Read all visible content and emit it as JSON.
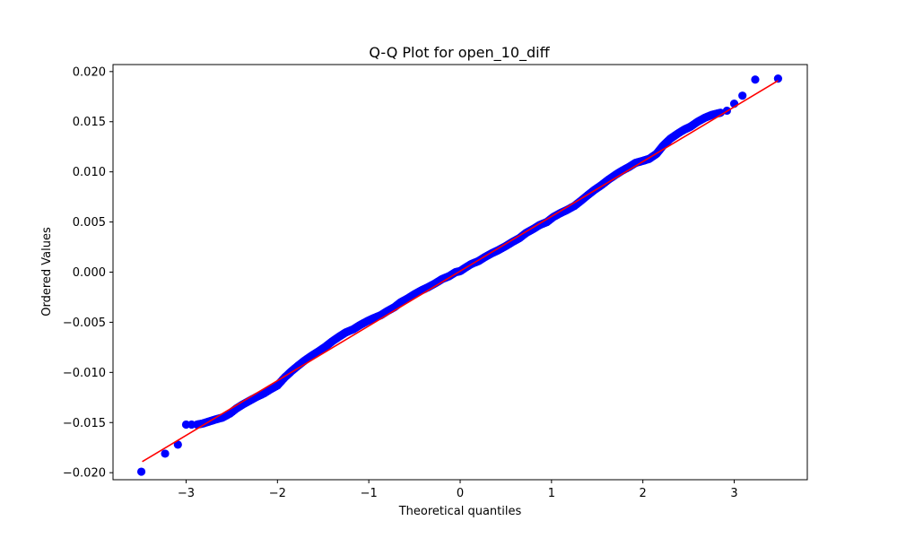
{
  "chart_data": {
    "type": "scatter",
    "title": "Q-Q Plot for open_10_diff",
    "xlabel": "Theoretical quantiles",
    "ylabel": "Ordered Values",
    "xlim": [
      -3.8,
      3.8
    ],
    "ylim": [
      -0.0207,
      0.0207
    ],
    "x_ticks": [
      -3,
      -2,
      -1,
      0,
      1,
      2,
      3
    ],
    "x_tick_labels": [
      "−3",
      "−2",
      "−1",
      "0",
      "1",
      "2",
      "3"
    ],
    "y_ticks": [
      -0.02,
      -0.015,
      -0.01,
      -0.005,
      0.0,
      0.005,
      0.01,
      0.015,
      0.02
    ],
    "y_tick_labels": [
      "−0.020",
      "−0.015",
      "−0.010",
      "−0.005",
      "0.000",
      "0.005",
      "0.010",
      "0.015",
      "0.020"
    ],
    "grid": false,
    "legend": "none",
    "series": [
      {
        "kind": "sample",
        "color": "#0000ff",
        "points": [
          [
            -3.49,
            -0.0199
          ],
          [
            -3.23,
            -0.0181
          ],
          [
            -3.09,
            -0.0172
          ],
          [
            -3.0,
            -0.0152
          ],
          [
            -2.94,
            -0.0152
          ],
          [
            -2.88,
            -0.0152
          ],
          [
            -2.82,
            -0.0151
          ],
          [
            -2.75,
            -0.0149
          ],
          [
            -2.68,
            -0.0147
          ],
          [
            -2.6,
            -0.0145
          ],
          [
            -2.52,
            -0.0141
          ],
          [
            -2.45,
            -0.0136
          ],
          [
            -2.38,
            -0.0132
          ],
          [
            -2.3,
            -0.0128
          ],
          [
            -2.22,
            -0.0124
          ],
          [
            -2.15,
            -0.0121
          ],
          [
            -2.08,
            -0.0117
          ],
          [
            -2.0,
            -0.0113
          ],
          [
            -1.92,
            -0.0105
          ],
          [
            -1.85,
            -0.0099
          ],
          [
            -1.77,
            -0.0093
          ],
          [
            -1.7,
            -0.0088
          ],
          [
            -1.62,
            -0.0083
          ],
          [
            -1.55,
            -0.0079
          ],
          [
            -1.47,
            -0.0074
          ],
          [
            -1.4,
            -0.0069
          ],
          [
            -1.32,
            -0.0064
          ],
          [
            -1.25,
            -0.006
          ],
          [
            -1.17,
            -0.0057
          ],
          [
            -1.1,
            -0.0053
          ],
          [
            -1.02,
            -0.0049
          ],
          [
            -0.95,
            -0.0046
          ],
          [
            -0.87,
            -0.0043
          ],
          [
            -0.8,
            -0.0039
          ],
          [
            -0.72,
            -0.0035
          ],
          [
            -0.65,
            -0.003
          ],
          [
            -0.57,
            -0.0026
          ],
          [
            -0.5,
            -0.0022
          ],
          [
            -0.42,
            -0.0018
          ],
          [
            -0.35,
            -0.0015
          ],
          [
            -0.27,
            -0.0011
          ],
          [
            -0.2,
            -0.0007
          ],
          [
            -0.12,
            -0.0004
          ],
          [
            -0.05,
            0.0
          ],
          [
            0.0,
            0.0001
          ],
          [
            0.05,
            0.0004
          ],
          [
            0.12,
            0.0008
          ],
          [
            0.2,
            0.0011
          ],
          [
            0.27,
            0.0015
          ],
          [
            0.35,
            0.0019
          ],
          [
            0.42,
            0.0022
          ],
          [
            0.5,
            0.0026
          ],
          [
            0.57,
            0.003
          ],
          [
            0.65,
            0.0034
          ],
          [
            0.72,
            0.0039
          ],
          [
            0.8,
            0.0043
          ],
          [
            0.87,
            0.0047
          ],
          [
            0.95,
            0.005
          ],
          [
            1.02,
            0.0055
          ],
          [
            1.1,
            0.0059
          ],
          [
            1.17,
            0.0062
          ],
          [
            1.25,
            0.0066
          ],
          [
            1.32,
            0.0071
          ],
          [
            1.4,
            0.0077
          ],
          [
            1.47,
            0.0082
          ],
          [
            1.55,
            0.0087
          ],
          [
            1.62,
            0.0092
          ],
          [
            1.7,
            0.0097
          ],
          [
            1.77,
            0.0101
          ],
          [
            1.85,
            0.0105
          ],
          [
            1.92,
            0.0109
          ],
          [
            2.0,
            0.0111
          ],
          [
            2.07,
            0.0113
          ],
          [
            2.15,
            0.0118
          ],
          [
            2.22,
            0.0126
          ],
          [
            2.3,
            0.0133
          ],
          [
            2.38,
            0.0138
          ],
          [
            2.45,
            0.0142
          ],
          [
            2.52,
            0.0145
          ],
          [
            2.6,
            0.015
          ],
          [
            2.68,
            0.0154
          ],
          [
            2.76,
            0.0157
          ],
          [
            2.85,
            0.0159
          ],
          [
            2.92,
            0.0161
          ],
          [
            3.0,
            0.0168
          ],
          [
            3.09,
            0.0176
          ],
          [
            3.23,
            0.0192
          ],
          [
            3.48,
            0.0193
          ]
        ]
      },
      {
        "kind": "reference-line",
        "color": "#ff0000",
        "points": [
          [
            -3.48,
            -0.0189
          ],
          [
            3.48,
            0.0191
          ]
        ]
      }
    ]
  }
}
